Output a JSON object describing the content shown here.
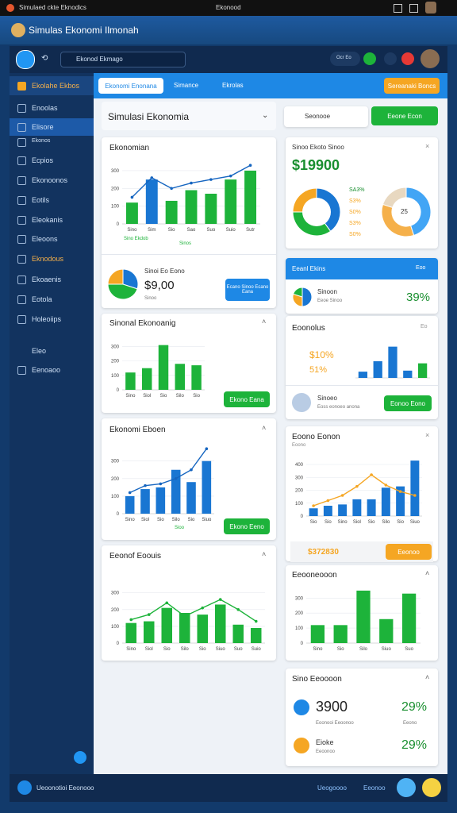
{
  "status_bar": {
    "left": "Simulaed ckte Eknodics",
    "center": "Ekonood"
  },
  "window_title": "Simulas Ekonomi Ilmonah",
  "app_bar": {
    "search": "Ekonod Ekmago",
    "badge": "Ocr Eo"
  },
  "sidebar": {
    "items": [
      "Ekolahe Ekbos",
      "Enoolas",
      "Elisore",
      "Ekonos",
      "Ecpios",
      "Ekonoonos",
      "Eotils",
      "Eleokanis",
      "Eleoons",
      "Eknodous",
      "Ekoaenis",
      "Eotola",
      "Holeoiips"
    ],
    "section": "Eleo",
    "section_item": "Eenoaoo"
  },
  "tabs": [
    "Ekonomi Enonana",
    "Simance",
    "Ekrolas"
  ],
  "action_button": "Sereanaki Boncs",
  "main_title": "Simulasi Ekonomia",
  "dropdown": "Seonooe",
  "green_button": "Eeone Econ",
  "cards": [
    {
      "title": "Ekonomian",
      "caption": "Sino Ekdob",
      "caption2": "Sinos",
      "chart": {
        "type": "bar",
        "ylim": [
          0,
          340
        ],
        "yticks": [
          0,
          100,
          200,
          300
        ],
        "categories": [
          "Sino",
          "Sim",
          "Sio",
          "Sao",
          "Suo",
          "Suio",
          "Sutr"
        ],
        "series": [
          {
            "type": "bar",
            "colors": [
              "#1db33a",
              "#1976d2",
              "#1db33a",
              "#1db33a",
              "#1db33a",
              "#1db33a",
              "#1db33a"
            ],
            "values": [
              120,
              250,
              130,
              190,
              170,
              250,
              300
            ]
          },
          {
            "type": "line",
            "color": "#1565c0",
            "values": [
              150,
              260,
              200,
              230,
              250,
              270,
              330
            ]
          }
        ]
      }
    },
    {
      "title": "Sinoi Eo Eono",
      "amount": "$9,00",
      "note": "Sinoo",
      "button": "Ecano Sinoo Ecano Eana",
      "chart": {
        "type": "pie",
        "slices": [
          30,
          45,
          25
        ],
        "colors": [
          "#1976d2",
          "#1db33a",
          "#f5a623"
        ]
      }
    },
    {
      "title": "Sinonal Ekonoanig",
      "button": "Ekono Eana",
      "chart": {
        "type": "bar",
        "ylim": [
          0,
          330
        ],
        "yticks": [
          0,
          100,
          200,
          300
        ],
        "categories": [
          "Sino",
          "Siol",
          "Sio",
          "Silo",
          "Sio"
        ],
        "series": [
          {
            "type": "bar",
            "color": "#1db33a",
            "values": [
              120,
              150,
              310,
              180,
              170
            ]
          }
        ]
      }
    },
    {
      "title": "Ekonomi Eboen",
      "caption": "Sioo",
      "button": "Ekono Eeno",
      "chart": {
        "type": "bar",
        "ylim": [
          0,
          380
        ],
        "yticks": [
          0,
          100,
          200,
          300
        ],
        "categories": [
          "Sino",
          "Siol",
          "Sio",
          "Silo",
          "Sio",
          "Siuo"
        ],
        "series": [
          {
            "type": "bar",
            "color": "#1976d2",
            "values": [
              100,
              140,
              150,
              250,
              180,
              300
            ]
          },
          {
            "type": "line",
            "color": "#1565c0",
            "values": [
              120,
              160,
              170,
              200,
              250,
              370
            ]
          }
        ]
      }
    },
    {
      "title": "Eeonof Eoouis",
      "chart": {
        "type": "bar",
        "ylim": [
          0,
          360
        ],
        "yticks": [
          0,
          100,
          200,
          300
        ],
        "categories": [
          "Sino",
          "Siol",
          "Sio",
          "Silo",
          "Sio",
          "Siuo",
          "Suo",
          "Suio"
        ],
        "series": [
          {
            "type": "bar",
            "color": "#1db33a",
            "values": [
              120,
              130,
              210,
              180,
              170,
              230,
              110,
              90
            ]
          },
          {
            "type": "line",
            "color": "#1db33a",
            "values": [
              140,
              170,
              240,
              160,
              210,
              260,
              200,
              130
            ]
          }
        ]
      }
    },
    {
      "title": "Sinoo Ekoto Sinoo",
      "amount": "$19900",
      "labels": [
        "SA3%",
        "S3%",
        "S0%",
        "S3%",
        "S0%"
      ],
      "center": "25",
      "chart": {
        "type": "pie",
        "donut": true,
        "slices": [
          40,
          35,
          25
        ],
        "colors": [
          "#1976d2",
          "#1db33a",
          "#f5a623"
        ]
      },
      "chart2": {
        "type": "pie",
        "donut": true,
        "slices": [
          45,
          35,
          20
        ],
        "colors": [
          "#42a5f5",
          "#f5b04a",
          "#e8d8c0"
        ]
      }
    },
    {
      "title": "Eeanl Ekins",
      "link": "Eoo",
      "row_title": "Sinoon",
      "row_note": "Eeoe Sinoo",
      "percent": "39%",
      "chart": {
        "type": "pie",
        "slices": [
          50,
          30,
          20
        ],
        "colors": [
          "#1976d2",
          "#f5a623",
          "#1db33a"
        ]
      }
    },
    {
      "title": "Eoonolus",
      "tag": "Eo",
      "p1": "$10%",
      "p2": "51%",
      "chart": {
        "type": "bar",
        "ylim": [
          0,
          320
        ],
        "series": [
          {
            "type": "bar",
            "colors": [
              "#1976d2",
              "#1976d2",
              "#1976d2",
              "#1976d2",
              "#1db33a"
            ],
            "values": [
              60,
              160,
              300,
              70,
              140
            ]
          }
        ]
      }
    },
    {
      "title": "Sinoeo",
      "note": "Eoss eonoeo anona",
      "button": "Eonoo Eono"
    },
    {
      "title": "Eoono Eonon",
      "subtitle": "Eoono",
      "chart": {
        "type": "bar",
        "ylim": [
          0,
          480
        ],
        "yticks": [
          0,
          100,
          200,
          300,
          400
        ],
        "categories": [
          "Sio",
          "Sio",
          "Sino",
          "Siol",
          "Sio",
          "Silo",
          "Sio",
          "Siuo"
        ],
        "series": [
          {
            "type": "bar",
            "color": "#1976d2",
            "values": [
              60,
              80,
              90,
              130,
              130,
              220,
              230,
              430
            ]
          },
          {
            "type": "line",
            "color": "#f5a623",
            "values": [
              80,
              120,
              160,
              230,
              320,
              240,
              190,
              160
            ]
          }
        ]
      }
    },
    {
      "amount": "$372830",
      "button": "Eeonoo"
    },
    {
      "title": "Eeooneooon",
      "chart": {
        "type": "bar",
        "ylim": [
          0,
          360
        ],
        "yticks": [
          0,
          100,
          200,
          300
        ],
        "categories": [
          "Sino",
          "Sio",
          "Silo",
          "Siuo",
          "Suo"
        ],
        "series": [
          {
            "type": "bar",
            "color": "#1db33a",
            "values": [
              120,
              120,
              350,
              160,
              330
            ]
          }
        ]
      }
    },
    {
      "title": "Sino Eeoooon",
      "big": "3900",
      "p1": "29%",
      "note": "Eoonooi Eeoonoo",
      "note2": "Eeono",
      "row2": "Eioke",
      "row2_note": "Eeoonoo",
      "p2": "29%"
    }
  ],
  "bottom_bar": {
    "left": "Ueoonotioi Eeonooo",
    "right1": "Ueogoooo",
    "right2": "Eeonoo"
  }
}
